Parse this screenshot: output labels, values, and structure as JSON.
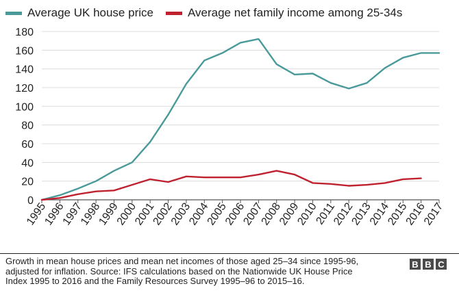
{
  "chart_data": {
    "type": "line",
    "title": "",
    "xlabel": "",
    "ylabel": "",
    "ylim": [
      0,
      180
    ],
    "yticks": [
      0,
      20,
      40,
      60,
      80,
      100,
      120,
      140,
      160,
      180
    ],
    "grid": true,
    "legend": "top",
    "categories": [
      "1995",
      "1996",
      "1997",
      "1998",
      "1999",
      "2000",
      "2001",
      "2002",
      "2003",
      "2004",
      "2005",
      "2006",
      "2007",
      "2008",
      "2009",
      "2010",
      "2011",
      "2012",
      "2013",
      "2014",
      "2015",
      "2016",
      "2017"
    ],
    "series": [
      {
        "name": "Average UK house price",
        "color": "#4a9a9a",
        "values": [
          0,
          5,
          12,
          20,
          31,
          40,
          62,
          91,
          124,
          149,
          157,
          168,
          172,
          145,
          134,
          135,
          125,
          119,
          125,
          141,
          152,
          157,
          157
        ]
      },
      {
        "name": "Average net family income among 25-34s",
        "color": "#c0212f",
        "values": [
          0,
          2,
          6,
          9,
          10,
          16,
          22,
          19,
          25,
          24,
          24,
          24,
          27,
          31,
          27,
          18,
          17,
          15,
          16,
          18,
          22,
          23,
          null
        ]
      }
    ]
  },
  "footnote": {
    "line1": "Growth in mean house prices and mean net incomes of those aged 25–34 since 1995-96,",
    "line2": "adjusted for inflation. Source: IFS calculations based on the Nationwide UK House Price",
    "line3": "Index 1995 to 2016 and the Family Resources Survey 1995–96 to 2015–16."
  },
  "logo": {
    "letters": [
      "B",
      "B",
      "C"
    ]
  }
}
